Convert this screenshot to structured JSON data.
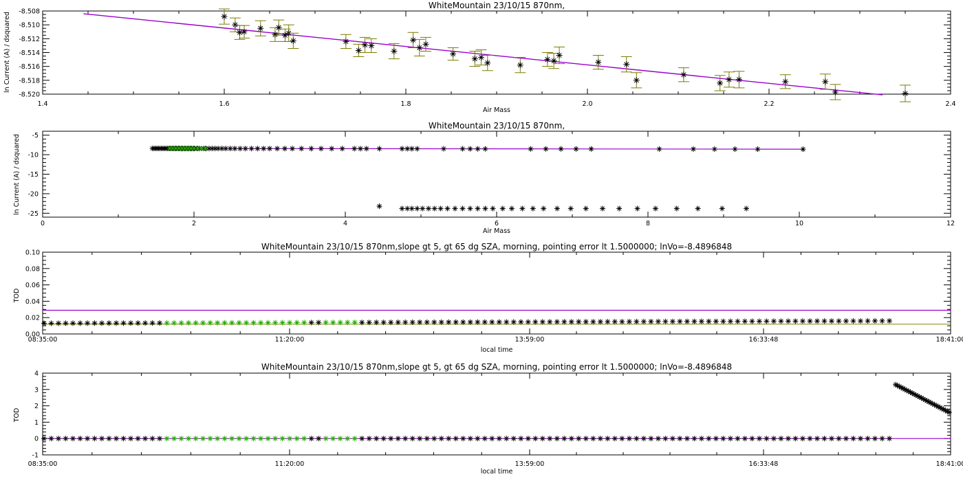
{
  "colors": {
    "fit_line": "#9900cc",
    "errorbar": "#7a7a00",
    "points": "#000000",
    "selected_points": "#22aa00",
    "baseline": "#888800"
  },
  "chart_data": [
    {
      "type": "scatter",
      "title": "WhiteMountain 23/10/15 870nm,",
      "xlabel": "Air Mass",
      "ylabel": "ln Current (A) / dsquared",
      "xlim": [
        1.4,
        2.4
      ],
      "ylim": [
        -8.52,
        -8.508
      ],
      "xticks": [
        1.4,
        1.6,
        1.8,
        2.0,
        2.2,
        2.4
      ],
      "xtick_labels": [
        "1.4",
        "1.6",
        "1.8",
        "2.0",
        "2.2",
        "2.4"
      ],
      "yticks": [
        -8.52,
        -8.518,
        -8.516,
        -8.514,
        -8.512,
        -8.51,
        -8.508
      ],
      "ytick_labels": [
        "-8.520",
        "-8.518",
        "-8.516",
        "-8.514",
        "-8.512",
        "-8.510",
        "-8.508"
      ],
      "fit_line": {
        "x": [
          1.445,
          2.325
        ],
        "y": [
          -8.5084,
          -8.5201
        ]
      },
      "points": [
        {
          "x": 1.6,
          "y": -8.5088,
          "err": 0.0011
        },
        {
          "x": 1.612,
          "y": -8.51,
          "err": 0.001
        },
        {
          "x": 1.617,
          "y": -8.5111,
          "err": 0.001
        },
        {
          "x": 1.622,
          "y": -8.511,
          "err": 0.0009
        },
        {
          "x": 1.64,
          "y": -8.5105,
          "err": 0.0011
        },
        {
          "x": 1.656,
          "y": -8.5114,
          "err": 0.001
        },
        {
          "x": 1.66,
          "y": -8.5104,
          "err": 0.0011
        },
        {
          "x": 1.667,
          "y": -8.5115,
          "err": 0.0009
        },
        {
          "x": 1.671,
          "y": -8.5112,
          "err": 0.0012
        },
        {
          "x": 1.676,
          "y": -8.5123,
          "err": 0.0011
        },
        {
          "x": 1.734,
          "y": -8.5124,
          "err": 0.001
        },
        {
          "x": 1.748,
          "y": -8.5137,
          "err": 0.0009
        },
        {
          "x": 1.755,
          "y": -8.5129,
          "err": 0.0011
        },
        {
          "x": 1.762,
          "y": -8.513,
          "err": 0.001
        },
        {
          "x": 1.787,
          "y": -8.5138,
          "err": 0.0011
        },
        {
          "x": 1.808,
          "y": -8.5122,
          "err": 0.0011
        },
        {
          "x": 1.815,
          "y": -8.5133,
          "err": 0.0012
        },
        {
          "x": 1.822,
          "y": -8.5128,
          "err": 0.001
        },
        {
          "x": 1.852,
          "y": -8.5142,
          "err": 0.0009
        },
        {
          "x": 1.876,
          "y": -8.5149,
          "err": 0.0011
        },
        {
          "x": 1.883,
          "y": -8.5147,
          "err": 0.0011
        },
        {
          "x": 1.89,
          "y": -8.5155,
          "err": 0.0011
        },
        {
          "x": 1.926,
          "y": -8.5158,
          "err": 0.0011
        },
        {
          "x": 1.956,
          "y": -8.515,
          "err": 0.001
        },
        {
          "x": 1.963,
          "y": -8.5152,
          "err": 0.0011
        },
        {
          "x": 1.969,
          "y": -8.5144,
          "err": 0.0012
        },
        {
          "x": 2.012,
          "y": -8.5154,
          "err": 0.001
        },
        {
          "x": 2.043,
          "y": -8.5157,
          "err": 0.0011
        },
        {
          "x": 2.054,
          "y": -8.518,
          "err": 0.0011
        },
        {
          "x": 2.106,
          "y": -8.5172,
          "err": 0.001
        },
        {
          "x": 2.146,
          "y": -8.5184,
          "err": 0.0011
        },
        {
          "x": 2.156,
          "y": -8.5179,
          "err": 0.0011
        },
        {
          "x": 2.167,
          "y": -8.5179,
          "err": 0.0012
        },
        {
          "x": 2.218,
          "y": -8.5182,
          "err": 0.001
        },
        {
          "x": 2.262,
          "y": -8.5182,
          "err": 0.0011
        },
        {
          "x": 2.273,
          "y": -8.5197,
          "err": 0.0011
        },
        {
          "x": 2.35,
          "y": -8.5199,
          "err": 0.0012
        }
      ]
    },
    {
      "type": "scatter",
      "title": "WhiteMountain 23/10/15 870nm,",
      "xlabel": "Air Mass",
      "ylabel": "ln Current (A) / dsquared",
      "xlim": [
        0,
        12
      ],
      "ylim": [
        -26,
        -4
      ],
      "xticks": [
        0,
        2,
        4,
        6,
        8,
        10,
        12
      ],
      "xtick_labels": [
        "0",
        "2",
        "4",
        "6",
        "8",
        "10",
        "12"
      ],
      "yticks": [
        -25,
        -20,
        -15,
        -10,
        -5
      ],
      "ytick_labels": [
        "-25",
        "-20",
        "-15",
        "-10",
        "-5"
      ],
      "fit_line": {
        "x": [
          1.45,
          10.05
        ],
        "y": [
          -8.4,
          -8.6
        ]
      },
      "upper_points_x": [
        1.45,
        1.47,
        1.49,
        1.51,
        1.53,
        1.55,
        1.57,
        1.59,
        1.61,
        1.63,
        1.65,
        1.67,
        1.69,
        1.71,
        1.73,
        1.75,
        1.77,
        1.79,
        1.81,
        1.83,
        1.85,
        1.87,
        1.89,
        1.91,
        1.93,
        1.95,
        1.97,
        1.99,
        2.01,
        2.04,
        2.07,
        2.1,
        2.13,
        2.16,
        2.2,
        2.24,
        2.28,
        2.32,
        2.37,
        2.42,
        2.48,
        2.54,
        2.61,
        2.68,
        2.76,
        2.84,
        2.92,
        3.0,
        3.1,
        3.2,
        3.3,
        3.42,
        3.55,
        3.68,
        3.82,
        3.96,
        4.12,
        4.2,
        4.28,
        4.45,
        4.75,
        4.82,
        4.88,
        4.95,
        5.3,
        5.55,
        5.65,
        5.75,
        5.85,
        6.45,
        6.65,
        6.85,
        7.05,
        7.25,
        8.15,
        8.6,
        8.88,
        9.15,
        9.45,
        10.05
      ],
      "selected_points_x": [
        1.68,
        1.72,
        1.76,
        1.8,
        1.84,
        1.88,
        1.92,
        1.96,
        2.0,
        2.05,
        2.1,
        2.15
      ],
      "selected_points_y": -8.4,
      "lower_points_x": [
        4.45,
        4.75,
        4.82,
        4.88,
        4.95,
        5.02,
        5.1,
        5.18,
        5.26,
        5.35,
        5.45,
        5.55,
        5.65,
        5.75,
        5.85,
        5.95,
        6.08,
        6.2,
        6.34,
        6.48,
        6.62,
        6.8,
        6.98,
        7.18,
        7.4,
        7.62,
        7.86,
        8.1,
        8.38,
        8.66,
        8.98,
        9.3
      ],
      "lower_points_y": [
        -23.2,
        -23.8
      ]
    },
    {
      "type": "scatter",
      "title": "WhiteMountain 23/10/15 870nm,slope gt 5, gt 65 dg SZA, morning, pointing error lt 1.5000000; lnVo=-8.4896848",
      "xlabel": "local time",
      "ylabel": "TOD",
      "ylim": [
        0.0,
        0.1
      ],
      "xtick_labels": [
        "08:35:00",
        "11:20:00",
        "13:59:00",
        "16:33:48",
        "18:41:00"
      ],
      "yticks": [
        0.0,
        0.02,
        0.04,
        0.06,
        0.08,
        0.1
      ],
      "ytick_labels": [
        "0.00",
        "0.02",
        "0.04",
        "0.06",
        "0.08",
        "0.10"
      ],
      "reference_line_y": 0.029,
      "baseline_y": 0.012,
      "tod_start": 0.013,
      "tod_end": 0.016
    },
    {
      "type": "scatter",
      "title": "WhiteMountain 23/10/15 870nm,slope gt 5, gt 65 dg SZA, morning, pointing error lt 1.5000000; lnVo=-8.4896848",
      "xlabel": "local time",
      "ylabel": "TOD",
      "ylim": [
        -1,
        4
      ],
      "xtick_labels": [
        "08:35:00",
        "11:20:00",
        "13:59:00",
        "16:33:48",
        "18:41:00"
      ],
      "yticks": [
        -1,
        0,
        1,
        2,
        3,
        4
      ],
      "ytick_labels": [
        "-1",
        "0",
        "1",
        "2",
        "3",
        "4"
      ],
      "baseline_y": 0.0,
      "tail": {
        "y_start": 3.3,
        "y_end": 1.6
      }
    }
  ]
}
